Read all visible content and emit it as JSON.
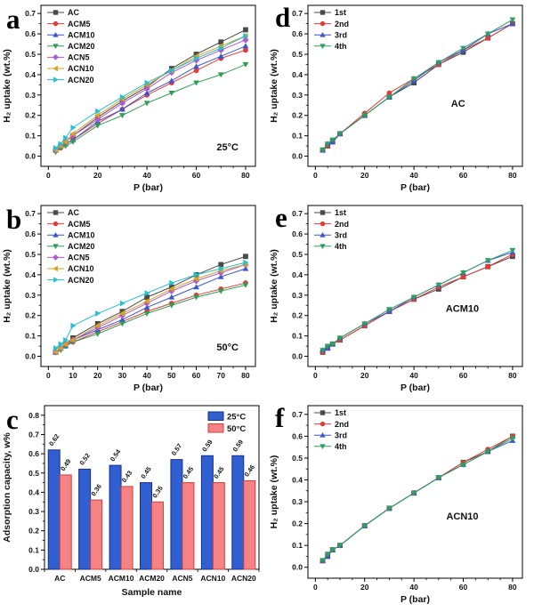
{
  "figure": {
    "background": "#ffffff"
  },
  "panels": [
    {
      "letter": "a"
    },
    {
      "letter": "b"
    },
    {
      "letter": "c"
    },
    {
      "letter": "d"
    },
    {
      "letter": "e"
    },
    {
      "letter": "f"
    }
  ],
  "chart_data": [
    {
      "id": "a",
      "type": "line",
      "xlabel": "P (bar)",
      "ylabel": "H₂ uptake (wt.%)",
      "annotation": "25°C",
      "annotation_pos": [
        0.87,
        0.9
      ],
      "xlim": [
        -3,
        84
      ],
      "ylim": [
        -0.05,
        0.74
      ],
      "xticks": [
        0,
        20,
        40,
        60,
        80
      ],
      "x_minor": 5,
      "yticks": [
        0.0,
        0.1,
        0.2,
        0.3,
        0.4,
        0.5,
        0.6,
        0.7
      ],
      "y_minor": 0.05,
      "legend_pos": "tl",
      "x": [
        3,
        5,
        7,
        10,
        20,
        30,
        40,
        50,
        60,
        70,
        80
      ],
      "series": [
        {
          "name": "AC",
          "color": "#4a4a4a",
          "marker": "square",
          "values": [
            0.03,
            0.05,
            0.07,
            0.1,
            0.19,
            0.27,
            0.34,
            0.43,
            0.5,
            0.56,
            0.62
          ]
        },
        {
          "name": "ACM5",
          "color": "#e63a35",
          "marker": "circle",
          "values": [
            0.03,
            0.04,
            0.06,
            0.08,
            0.16,
            0.23,
            0.3,
            0.36,
            0.42,
            0.48,
            0.52
          ]
        },
        {
          "name": "ACM10",
          "color": "#3a57cf",
          "marker": "triangle-up",
          "values": [
            0.03,
            0.05,
            0.06,
            0.08,
            0.17,
            0.23,
            0.31,
            0.37,
            0.44,
            0.49,
            0.54
          ]
        },
        {
          "name": "ACM20",
          "color": "#2f9e55",
          "marker": "triangle-down",
          "values": [
            0.02,
            0.04,
            0.05,
            0.07,
            0.15,
            0.2,
            0.26,
            0.31,
            0.36,
            0.4,
            0.45
          ]
        },
        {
          "name": "ACN5",
          "color": "#ae5ad2",
          "marker": "diamond",
          "values": [
            0.03,
            0.05,
            0.07,
            0.1,
            0.18,
            0.26,
            0.33,
            0.41,
            0.47,
            0.52,
            0.57
          ]
        },
        {
          "name": "ACN10",
          "color": "#d7a21e",
          "marker": "triangle-left",
          "values": [
            0.03,
            0.05,
            0.07,
            0.11,
            0.2,
            0.28,
            0.35,
            0.42,
            0.49,
            0.54,
            0.59
          ]
        },
        {
          "name": "ACN20",
          "color": "#23c0d2",
          "marker": "triangle-right",
          "values": [
            0.04,
            0.06,
            0.09,
            0.14,
            0.22,
            0.29,
            0.36,
            0.42,
            0.48,
            0.53,
            0.59
          ]
        }
      ]
    },
    {
      "id": "b",
      "type": "line",
      "xlabel": "P (bar)",
      "ylabel": "H₂ uptake (wt.%)",
      "annotation": "50°C",
      "annotation_pos": [
        0.87,
        0.9
      ],
      "xlim": [
        -3,
        84
      ],
      "ylim": [
        -0.05,
        0.74
      ],
      "xticks": [
        0,
        10,
        20,
        30,
        40,
        50,
        60,
        70,
        80
      ],
      "x_minor": 5,
      "yticks": [
        0.0,
        0.1,
        0.2,
        0.3,
        0.4,
        0.5,
        0.6,
        0.7
      ],
      "y_minor": 0.05,
      "legend_pos": "tl",
      "x": [
        3,
        5,
        7,
        10,
        20,
        30,
        40,
        50,
        60,
        70,
        80
      ],
      "series": [
        {
          "name": "AC",
          "color": "#4a4a4a",
          "marker": "square",
          "values": [
            0.02,
            0.04,
            0.06,
            0.09,
            0.16,
            0.22,
            0.29,
            0.34,
            0.4,
            0.45,
            0.49
          ]
        },
        {
          "name": "ACM5",
          "color": "#e63a35",
          "marker": "circle",
          "values": [
            0.02,
            0.04,
            0.05,
            0.07,
            0.12,
            0.17,
            0.22,
            0.26,
            0.3,
            0.33,
            0.36
          ]
        },
        {
          "name": "ACM10",
          "color": "#3a57cf",
          "marker": "triangle-up",
          "values": [
            0.02,
            0.04,
            0.05,
            0.08,
            0.13,
            0.18,
            0.24,
            0.29,
            0.34,
            0.39,
            0.43
          ]
        },
        {
          "name": "ACM20",
          "color": "#2f9e55",
          "marker": "triangle-down",
          "values": [
            0.02,
            0.03,
            0.05,
            0.07,
            0.11,
            0.16,
            0.21,
            0.25,
            0.29,
            0.32,
            0.35
          ]
        },
        {
          "name": "ACN5",
          "color": "#ae5ad2",
          "marker": "diamond",
          "values": [
            0.02,
            0.04,
            0.06,
            0.08,
            0.14,
            0.2,
            0.26,
            0.32,
            0.37,
            0.41,
            0.45
          ]
        },
        {
          "name": "ACN10",
          "color": "#d7a21e",
          "marker": "triangle-left",
          "values": [
            0.02,
            0.04,
            0.06,
            0.08,
            0.15,
            0.21,
            0.27,
            0.33,
            0.38,
            0.42,
            0.45
          ]
        },
        {
          "name": "ACN20",
          "color": "#23c0d2",
          "marker": "triangle-right",
          "values": [
            0.04,
            0.06,
            0.08,
            0.15,
            0.21,
            0.26,
            0.31,
            0.36,
            0.4,
            0.43,
            0.46
          ]
        }
      ]
    },
    {
      "id": "c",
      "type": "bar",
      "xlabel": "Sample name",
      "ylabel": "Adsorption capacity, w%",
      "ylim": [
        0,
        0.85
      ],
      "yticks": [
        0.0,
        0.1,
        0.2,
        0.3,
        0.4,
        0.5,
        0.6,
        0.7,
        0.8
      ],
      "y_minor": 0.05,
      "legend_pos": "tr",
      "categories": [
        "AC",
        "ACM5",
        "ACM10",
        "ACM20",
        "ACN5",
        "ACN10",
        "ACN20"
      ],
      "series": [
        {
          "name": "25°C",
          "fill": "#2f5fd0",
          "edge": "#1b2f8a",
          "values": [
            0.62,
            0.52,
            0.54,
            0.45,
            0.57,
            0.59,
            0.59
          ]
        },
        {
          "name": "50°C",
          "fill": "#f58383",
          "edge": "#cf4040",
          "values": [
            0.49,
            0.36,
            0.43,
            0.35,
            0.45,
            0.45,
            0.46
          ]
        }
      ]
    },
    {
      "id": "d",
      "type": "line",
      "xlabel": "P (bar)",
      "ylabel": "H₂ uptake (wt.%)",
      "annotation": "AC",
      "annotation_pos": [
        0.7,
        0.63
      ],
      "xlim": [
        -3,
        84
      ],
      "ylim": [
        -0.05,
        0.74
      ],
      "xticks": [
        0,
        20,
        40,
        60,
        80
      ],
      "x_minor": 5,
      "yticks": [
        0.0,
        0.1,
        0.2,
        0.3,
        0.4,
        0.5,
        0.6,
        0.7
      ],
      "y_minor": 0.05,
      "legend_pos": "tl",
      "x": [
        3,
        5,
        7,
        10,
        20,
        30,
        40,
        50,
        60,
        70,
        80
      ],
      "series": [
        {
          "name": "1st",
          "color": "#4a4a4a",
          "marker": "square",
          "values": [
            0.03,
            0.05,
            0.07,
            0.11,
            0.2,
            0.29,
            0.36,
            0.45,
            0.51,
            0.58,
            0.65
          ]
        },
        {
          "name": "2nd",
          "color": "#e63a35",
          "marker": "circle",
          "values": [
            0.03,
            0.05,
            0.07,
            0.11,
            0.21,
            0.31,
            0.38,
            0.45,
            0.52,
            0.58,
            0.65
          ]
        },
        {
          "name": "3rd",
          "color": "#3a57cf",
          "marker": "triangle-up",
          "values": [
            0.03,
            0.06,
            0.07,
            0.11,
            0.2,
            0.29,
            0.37,
            0.46,
            0.52,
            0.6,
            0.65
          ]
        },
        {
          "name": "4th",
          "color": "#2aa061",
          "marker": "triangle-down",
          "values": [
            0.03,
            0.06,
            0.08,
            0.11,
            0.2,
            0.29,
            0.38,
            0.46,
            0.53,
            0.6,
            0.67
          ]
        }
      ]
    },
    {
      "id": "e",
      "type": "line",
      "xlabel": "P (bar)",
      "ylabel": "H₂ uptake (wt.%)",
      "annotation": "ACM10",
      "annotation_pos": [
        0.72,
        0.66
      ],
      "xlim": [
        -3,
        84
      ],
      "ylim": [
        -0.05,
        0.74
      ],
      "xticks": [
        0,
        20,
        40,
        60,
        80
      ],
      "x_minor": 5,
      "yticks": [
        0.0,
        0.1,
        0.2,
        0.3,
        0.4,
        0.5,
        0.6,
        0.7
      ],
      "y_minor": 0.05,
      "legend_pos": "tl",
      "x": [
        3,
        5,
        7,
        10,
        20,
        30,
        40,
        50,
        60,
        70,
        80
      ],
      "series": [
        {
          "name": "1st",
          "color": "#4a4a4a",
          "marker": "square",
          "values": [
            0.02,
            0.04,
            0.06,
            0.08,
            0.15,
            0.22,
            0.28,
            0.33,
            0.39,
            0.44,
            0.49
          ]
        },
        {
          "name": "2nd",
          "color": "#e63a35",
          "marker": "circle",
          "values": [
            0.02,
            0.04,
            0.06,
            0.08,
            0.15,
            0.22,
            0.28,
            0.34,
            0.39,
            0.44,
            0.5
          ]
        },
        {
          "name": "3rd",
          "color": "#3a57cf",
          "marker": "triangle-up",
          "values": [
            0.03,
            0.04,
            0.06,
            0.09,
            0.16,
            0.22,
            0.29,
            0.35,
            0.41,
            0.47,
            0.51
          ]
        },
        {
          "name": "4th",
          "color": "#2aa061",
          "marker": "triangle-down",
          "values": [
            0.03,
            0.05,
            0.06,
            0.09,
            0.16,
            0.23,
            0.29,
            0.35,
            0.41,
            0.47,
            0.52
          ]
        }
      ]
    },
    {
      "id": "f",
      "type": "line",
      "xlabel": "P (bar)",
      "ylabel": "H₂ uptake (wt.%)",
      "annotation": "ACN10",
      "annotation_pos": [
        0.72,
        0.66
      ],
      "xlim": [
        -3,
        84
      ],
      "ylim": [
        -0.05,
        0.74
      ],
      "xticks": [
        0,
        20,
        40,
        60,
        80
      ],
      "x_minor": 5,
      "yticks": [
        0.0,
        0.1,
        0.2,
        0.3,
        0.4,
        0.5,
        0.6,
        0.7
      ],
      "y_minor": 0.05,
      "legend_pos": "tl",
      "x": [
        3,
        5,
        7,
        10,
        20,
        30,
        40,
        50,
        60,
        70,
        80
      ],
      "series": [
        {
          "name": "1st",
          "color": "#4a4a4a",
          "marker": "square",
          "values": [
            0.03,
            0.05,
            0.08,
            0.1,
            0.19,
            0.27,
            0.34,
            0.41,
            0.48,
            0.53,
            0.6
          ]
        },
        {
          "name": "2nd",
          "color": "#e63a35",
          "marker": "circle",
          "values": [
            0.03,
            0.06,
            0.08,
            0.1,
            0.19,
            0.27,
            0.34,
            0.41,
            0.48,
            0.54,
            0.6
          ]
        },
        {
          "name": "3rd",
          "color": "#3a57cf",
          "marker": "triangle-up",
          "values": [
            0.03,
            0.05,
            0.08,
            0.1,
            0.19,
            0.27,
            0.34,
            0.41,
            0.47,
            0.53,
            0.58
          ]
        },
        {
          "name": "4th",
          "color": "#2aa061",
          "marker": "triangle-down",
          "values": [
            0.03,
            0.06,
            0.08,
            0.1,
            0.19,
            0.27,
            0.34,
            0.41,
            0.47,
            0.53,
            0.59
          ]
        }
      ]
    }
  ]
}
